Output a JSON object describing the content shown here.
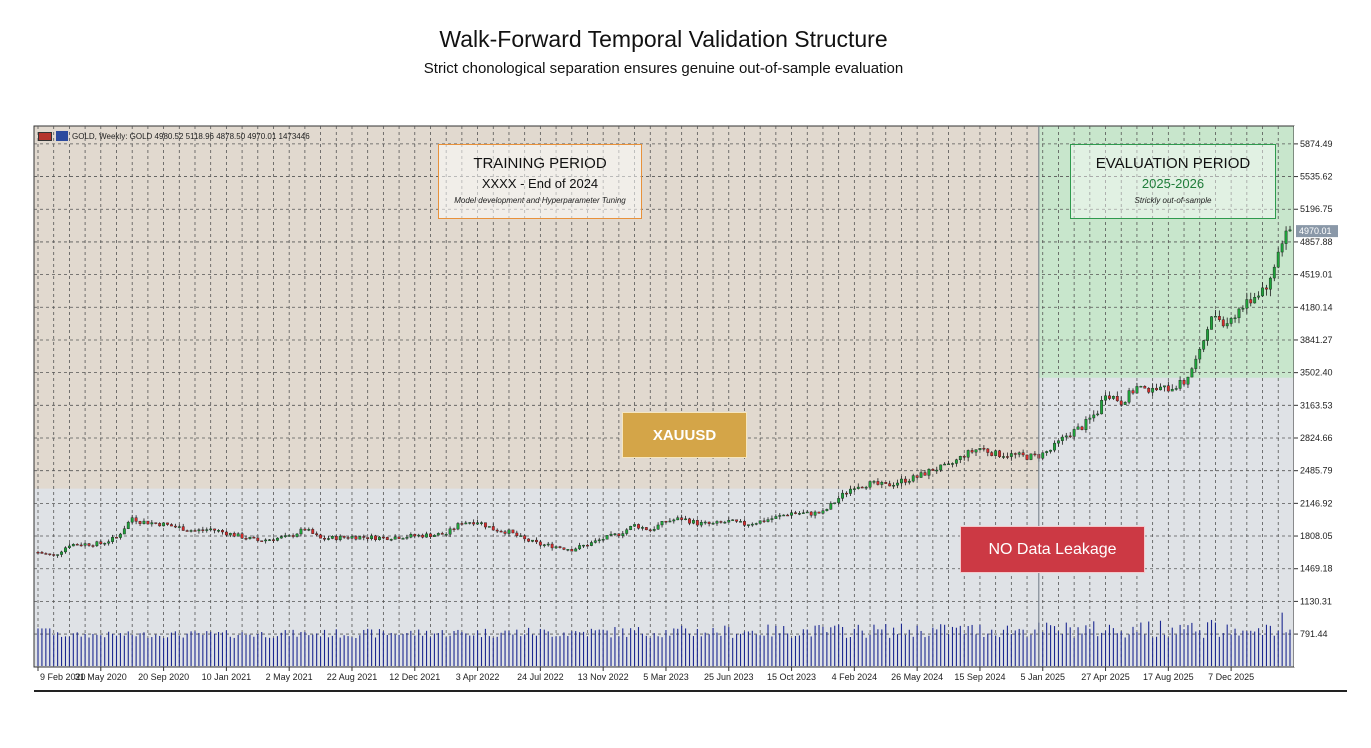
{
  "title": "Walk-Forward Temporal Validation Structure",
  "subtitle": "Strict chonological separation ensures genuine out-of-sample evaluation",
  "info_bar": "GOLD, Weekly:  GOLD  4980.52 5118.96 4878.50 4970.01  1473446",
  "training_box": {
    "heading": "TRAINING PERIOD",
    "range": "XXXX - End of 2024",
    "note": "Model development and Hyperparameter Tuning"
  },
  "evaluation_box": {
    "heading": "EVALUATION PERIOD",
    "range": "2025-2026",
    "note": "Strickly out-of-sample"
  },
  "symbol_label": "XAUUSD",
  "leakage_label": "NO Data Leakage",
  "current_price_label": "4970.01",
  "colors": {
    "training_shade": "#e1d9cf",
    "evaluation_shade": "#c8e6cc",
    "plot_bg": "#dfe2e6",
    "bull": "#1ea33a",
    "bear": "#d62c2c",
    "volume": "#1c2890",
    "label_orange": "#e8913a",
    "label_green": "#2f9a4e",
    "xauusd_bg": "#d4a548",
    "leakage_bg": "#cc3944"
  },
  "chart_data": {
    "type": "candlestick",
    "title": "GOLD, Weekly",
    "yticks": [
      "5874.49",
      "5535.62",
      "5196.75",
      "4857.88",
      "4519.01",
      "4180.14",
      "3841.27",
      "3502.40",
      "3163.53",
      "2824.66",
      "2485.79",
      "2146.92",
      "1808.05",
      "1469.18",
      "1130.31",
      "791.44"
    ],
    "ylim": [
      450,
      6060
    ],
    "xticks": [
      "9 Feb 2020",
      "31 May 2020",
      "20 Sep 2020",
      "10 Jan 2021",
      "2 May 2021",
      "22 Aug 2021",
      "12 Dec 2021",
      "3 Apr 2022",
      "24 Jul 2022",
      "13 Nov 2022",
      "5 Mar 2023",
      "25 Jun 2023",
      "15 Oct 2023",
      "4 Feb 2024",
      "26 May 2024",
      "15 Sep 2024",
      "5 Jan 2025",
      "27 Apr 2025",
      "17 Aug 2025",
      "7 Dec 2025"
    ],
    "weeks_between_ticks": 16,
    "total_weeks": 320,
    "split_week": 255,
    "close_path": [
      [
        0,
        1640
      ],
      [
        4,
        1600
      ],
      [
        8,
        1720
      ],
      [
        16,
        1730
      ],
      [
        20,
        1790
      ],
      [
        24,
        2000
      ],
      [
        26,
        1960
      ],
      [
        32,
        1930
      ],
      [
        40,
        1860
      ],
      [
        44,
        1880
      ],
      [
        48,
        1840
      ],
      [
        56,
        1760
      ],
      [
        64,
        1800
      ],
      [
        68,
        1880
      ],
      [
        72,
        1780
      ],
      [
        80,
        1800
      ],
      [
        88,
        1790
      ],
      [
        96,
        1810
      ],
      [
        104,
        1830
      ],
      [
        108,
        1950
      ],
      [
        112,
        1960
      ],
      [
        116,
        1880
      ],
      [
        120,
        1850
      ],
      [
        124,
        1770
      ],
      [
        128,
        1720
      ],
      [
        132,
        1700
      ],
      [
        136,
        1670
      ],
      [
        140,
        1720
      ],
      [
        144,
        1780
      ],
      [
        148,
        1830
      ],
      [
        152,
        1920
      ],
      [
        156,
        1870
      ],
      [
        160,
        1960
      ],
      [
        164,
        1990
      ],
      [
        168,
        1940
      ],
      [
        172,
        1930
      ],
      [
        176,
        1960
      ],
      [
        180,
        1930
      ],
      [
        184,
        1960
      ],
      [
        188,
        2000
      ],
      [
        192,
        2050
      ],
      [
        196,
        2040
      ],
      [
        200,
        2050
      ],
      [
        204,
        2200
      ],
      [
        208,
        2330
      ],
      [
        212,
        2350
      ],
      [
        216,
        2330
      ],
      [
        220,
        2380
      ],
      [
        224,
        2420
      ],
      [
        228,
        2500
      ],
      [
        232,
        2530
      ],
      [
        236,
        2650
      ],
      [
        240,
        2720
      ],
      [
        244,
        2660
      ],
      [
        248,
        2650
      ],
      [
        252,
        2630
      ],
      [
        255,
        2640
      ],
      [
        258,
        2700
      ],
      [
        262,
        2850
      ],
      [
        266,
        2940
      ],
      [
        270,
        3100
      ],
      [
        272,
        3300
      ],
      [
        274,
        3250
      ],
      [
        276,
        3200
      ],
      [
        280,
        3350
      ],
      [
        284,
        3320
      ],
      [
        288,
        3340
      ],
      [
        292,
        3400
      ],
      [
        296,
        3700
      ],
      [
        298,
        4000
      ],
      [
        300,
        4100
      ],
      [
        302,
        4000
      ],
      [
        306,
        4150
      ],
      [
        310,
        4300
      ],
      [
        314,
        4450
      ],
      [
        316,
        4750
      ],
      [
        318,
        4970
      ],
      [
        320,
        4970
      ]
    ],
    "volume_range": [
      750,
      950
    ],
    "volume_peaks": [
      [
        282,
        900
      ],
      [
        300,
        950
      ],
      [
        316,
        1070
      ]
    ]
  }
}
